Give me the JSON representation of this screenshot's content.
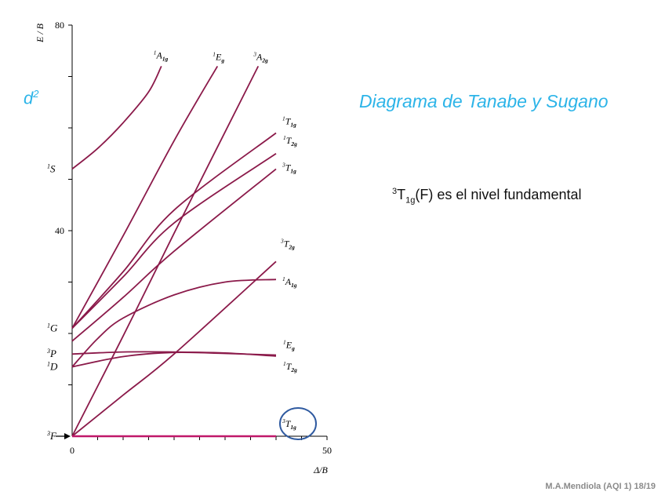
{
  "slide": {
    "d_label": "d",
    "d_sup": "2",
    "title": "Diagrama de Tanabe y Sugano",
    "fundamental": {
      "pre": "3",
      "main": "T",
      "sub": "1g",
      "post": "(F) es el nivel fundamental"
    },
    "footer": "M.A.Mendiola (AQI 1) 18/19"
  },
  "chart_data": {
    "type": "line",
    "xlabel": "Δ/B",
    "ylabel": "E / B",
    "xlim": [
      0,
      50
    ],
    "ylim": [
      0,
      80
    ],
    "x_ticks": [
      0,
      50
    ],
    "y_ticks": [
      40,
      80
    ],
    "color": "#8b1a4a",
    "highlight_color": "#c0186a",
    "circle_color": "#2f5aa0",
    "left_terms": [
      {
        "sup": "1",
        "term": "S",
        "y": 52
      },
      {
        "sup": "1",
        "term": "G",
        "y": 21
      },
      {
        "sup": "3",
        "term": "P",
        "y": 16
      },
      {
        "sup": "1",
        "term": "D",
        "y": 13.5
      },
      {
        "sup": "3",
        "term": "F",
        "y": 0
      }
    ],
    "series": [
      {
        "sup": "1",
        "term": "A",
        "sub": "1g",
        "x": [
          0,
          5,
          10,
          15,
          17.5
        ],
        "y": [
          52,
          56,
          61,
          67,
          72
        ]
      },
      {
        "sup": "1",
        "term": "E",
        "sub": "g",
        "x": [
          0,
          10,
          20,
          28.5
        ],
        "y": [
          21,
          39,
          57.5,
          72
        ]
      },
      {
        "sup": "3",
        "term": "A",
        "sub": "2g",
        "x": [
          0,
          10,
          20,
          36.5
        ],
        "y": [
          0,
          19.5,
          39.5,
          72
        ]
      },
      {
        "sup": "1",
        "term": "T",
        "sub": "1g",
        "x": [
          0,
          10,
          20,
          40
        ],
        "y": [
          21,
          32,
          44,
          59
        ]
      },
      {
        "sup": "1",
        "term": "T",
        "sub": "2g",
        "x": [
          0,
          10,
          20,
          40
        ],
        "y": [
          21,
          31,
          41.5,
          55
        ]
      },
      {
        "sup": "3",
        "term": "T",
        "sub": "1g",
        "x": [
          0,
          10,
          20,
          40
        ],
        "y": [
          18.5,
          27,
          36,
          52
        ]
      },
      {
        "sup": "3",
        "term": "T",
        "sub": "2g",
        "x": [
          0,
          10,
          20,
          40
        ],
        "y": [
          0,
          8,
          16,
          34
        ]
      },
      {
        "sup": "1",
        "term": "A",
        "sub": "1g",
        "x": [
          0,
          5,
          10,
          20,
          30,
          40
        ],
        "y": [
          13.5,
          19,
          23,
          27.5,
          30,
          30.5
        ]
      },
      {
        "sup": "1",
        "term": "E",
        "sub": "g",
        "x": [
          0,
          10,
          20,
          30,
          40
        ],
        "y": [
          13.5,
          15.5,
          16.3,
          16.1,
          15.8
        ]
      },
      {
        "sup": "1",
        "term": "T",
        "sub": "2g",
        "x": [
          0,
          10,
          20,
          30,
          40
        ],
        "y": [
          16,
          16.4,
          16.4,
          16.2,
          15.6
        ]
      },
      {
        "sup": "3",
        "term": "T",
        "sub": "1g",
        "x": [
          0,
          40
        ],
        "y": [
          0,
          0
        ]
      }
    ]
  }
}
